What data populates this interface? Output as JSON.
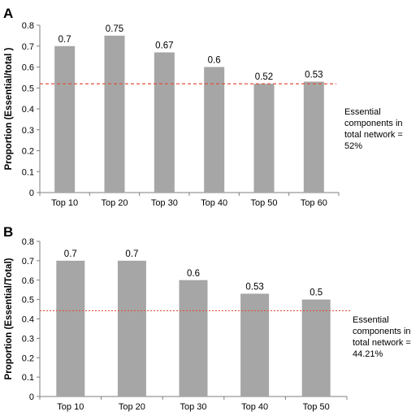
{
  "chart_data": [
    {
      "type": "bar",
      "panel": "A",
      "categories": [
        "Top 10",
        "Top 20",
        "Top 30",
        "Top 40",
        "Top 50",
        "Top 60"
      ],
      "values": [
        0.7,
        0.75,
        0.67,
        0.6,
        0.52,
        0.53
      ],
      "data_labels": [
        "0.7",
        "0.75",
        "0.67",
        "0.6",
        "0.52",
        "0.53"
      ],
      "ylabel": "Proportion (Essential/total )",
      "xlabel": "",
      "ylim": [
        0,
        0.8
      ],
      "yticks": [
        0,
        0.1,
        0.2,
        0.3,
        0.4,
        0.5,
        0.6,
        0.7,
        0.8
      ],
      "ytick_labels": [
        "0",
        "0.1",
        "0.2",
        "0.3",
        "0.4",
        "0.5",
        "0.6",
        "0.7",
        "0.8"
      ],
      "reference_line": {
        "value": 0.52,
        "color": "#e0503c",
        "style": "dashed",
        "annotation": [
          "Essential",
          "components in",
          "total network  =",
          "52%"
        ]
      },
      "bar_color": "#a6a6a6",
      "grid": false,
      "legend": "none"
    },
    {
      "type": "bar",
      "panel": "B",
      "categories": [
        "Top 10",
        "Top 20",
        "Top 30",
        "Top 40",
        "Top 50"
      ],
      "values": [
        0.7,
        0.7,
        0.6,
        0.53,
        0.5
      ],
      "data_labels": [
        "0.7",
        "0.7",
        "0.6",
        "0.53",
        "0.5"
      ],
      "ylabel": "Proportion (Essential/Total)",
      "xlabel": "",
      "ylim": [
        0,
        0.8
      ],
      "yticks": [
        0,
        0.1,
        0.2,
        0.3,
        0.4,
        0.5,
        0.6,
        0.7,
        0.8
      ],
      "ytick_labels": [
        "0",
        "0.1",
        "0.2",
        "0.3",
        "0.4",
        "0.5",
        "0.6",
        "0.7",
        "0.8"
      ],
      "reference_line": {
        "value": 0.4421,
        "color": "#e0503c",
        "style": "dotted",
        "annotation": [
          "Essential",
          "components in",
          "total network =",
          "44.21%"
        ]
      },
      "bar_color": "#a6a6a6",
      "grid": false,
      "legend": "none"
    }
  ]
}
